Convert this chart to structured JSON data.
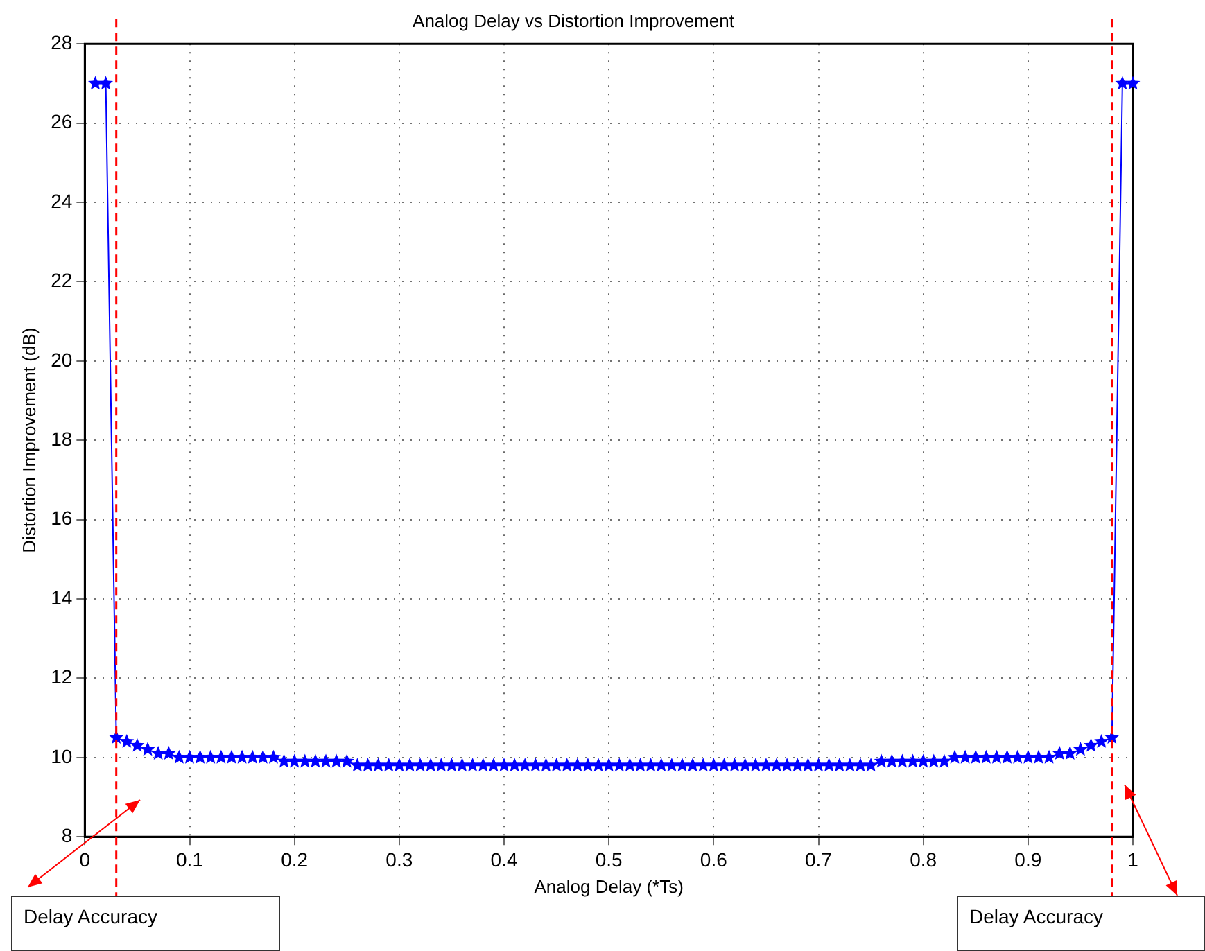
{
  "chart_data": {
    "type": "line",
    "title": "Analog Delay vs Distortion Improvement",
    "xlabel": "Analog Delay (*Ts)",
    "ylabel": "Distortion Improvement (dB)",
    "x": [
      0.01,
      0.02,
      0.03,
      0.04,
      0.05,
      0.06,
      0.07,
      0.08,
      0.09,
      0.1,
      0.11,
      0.12,
      0.13,
      0.14,
      0.15,
      0.16,
      0.17,
      0.18,
      0.19,
      0.2,
      0.21,
      0.22,
      0.23,
      0.24,
      0.25,
      0.26,
      0.27,
      0.28,
      0.29,
      0.3,
      0.31,
      0.32,
      0.33,
      0.34,
      0.35,
      0.36,
      0.37,
      0.38,
      0.39,
      0.4,
      0.41,
      0.42,
      0.43,
      0.44,
      0.45,
      0.46,
      0.47,
      0.48,
      0.49,
      0.5,
      0.51,
      0.52,
      0.53,
      0.54,
      0.55,
      0.56,
      0.57,
      0.58,
      0.59,
      0.6,
      0.61,
      0.62,
      0.63,
      0.64,
      0.65,
      0.66,
      0.67,
      0.68,
      0.69,
      0.7,
      0.71,
      0.72,
      0.73,
      0.74,
      0.75,
      0.76,
      0.77,
      0.78,
      0.79,
      0.8,
      0.81,
      0.82,
      0.83,
      0.84,
      0.85,
      0.86,
      0.87,
      0.88,
      0.89,
      0.9,
      0.91,
      0.92,
      0.93,
      0.94,
      0.95,
      0.96,
      0.97,
      0.98,
      0.99,
      1.0
    ],
    "series": [
      {
        "color": "#0000ff",
        "values": [
          27,
          27,
          10.5,
          10.4,
          10.3,
          10.2,
          10.1,
          10.1,
          10,
          10,
          10,
          10,
          10,
          10,
          10,
          10,
          10,
          10,
          9.9,
          9.9,
          9.9,
          9.9,
          9.9,
          9.9,
          9.9,
          9.8,
          9.8,
          9.8,
          9.8,
          9.8,
          9.8,
          9.8,
          9.8,
          9.8,
          9.8,
          9.8,
          9.8,
          9.8,
          9.8,
          9.8,
          9.8,
          9.8,
          9.8,
          9.8,
          9.8,
          9.8,
          9.8,
          9.8,
          9.8,
          9.8,
          9.8,
          9.8,
          9.8,
          9.8,
          9.8,
          9.8,
          9.8,
          9.8,
          9.8,
          9.8,
          9.8,
          9.8,
          9.8,
          9.8,
          9.8,
          9.8,
          9.8,
          9.8,
          9.8,
          9.8,
          9.8,
          9.8,
          9.8,
          9.8,
          9.8,
          9.9,
          9.9,
          9.9,
          9.9,
          9.9,
          9.9,
          9.9,
          10,
          10,
          10,
          10,
          10,
          10,
          10,
          10,
          10,
          10,
          10.1,
          10.1,
          10.2,
          10.3,
          10.4,
          10.5,
          27,
          27
        ]
      }
    ],
    "xlim": [
      0,
      1
    ],
    "xticks": [
      0,
      0.1,
      0.2,
      0.3,
      0.4,
      0.5,
      0.6,
      0.7,
      0.8,
      0.9,
      1
    ],
    "ylim": [
      8,
      28
    ],
    "yticks": [
      8,
      10,
      12,
      14,
      16,
      18,
      20,
      22,
      24,
      26,
      28
    ],
    "ref_lines": [
      {
        "axis": "x",
        "value": 0.03,
        "color": "#ff0000",
        "line_style": "dashed"
      },
      {
        "axis": "x",
        "value": 0.98,
        "color": "#ff0000",
        "line_style": "dashed"
      }
    ],
    "annotations": [
      "Delay Accuracy",
      "Delay Accuracy"
    ],
    "grid": true,
    "legend": false,
    "marker": "star",
    "line_style": "solid"
  }
}
